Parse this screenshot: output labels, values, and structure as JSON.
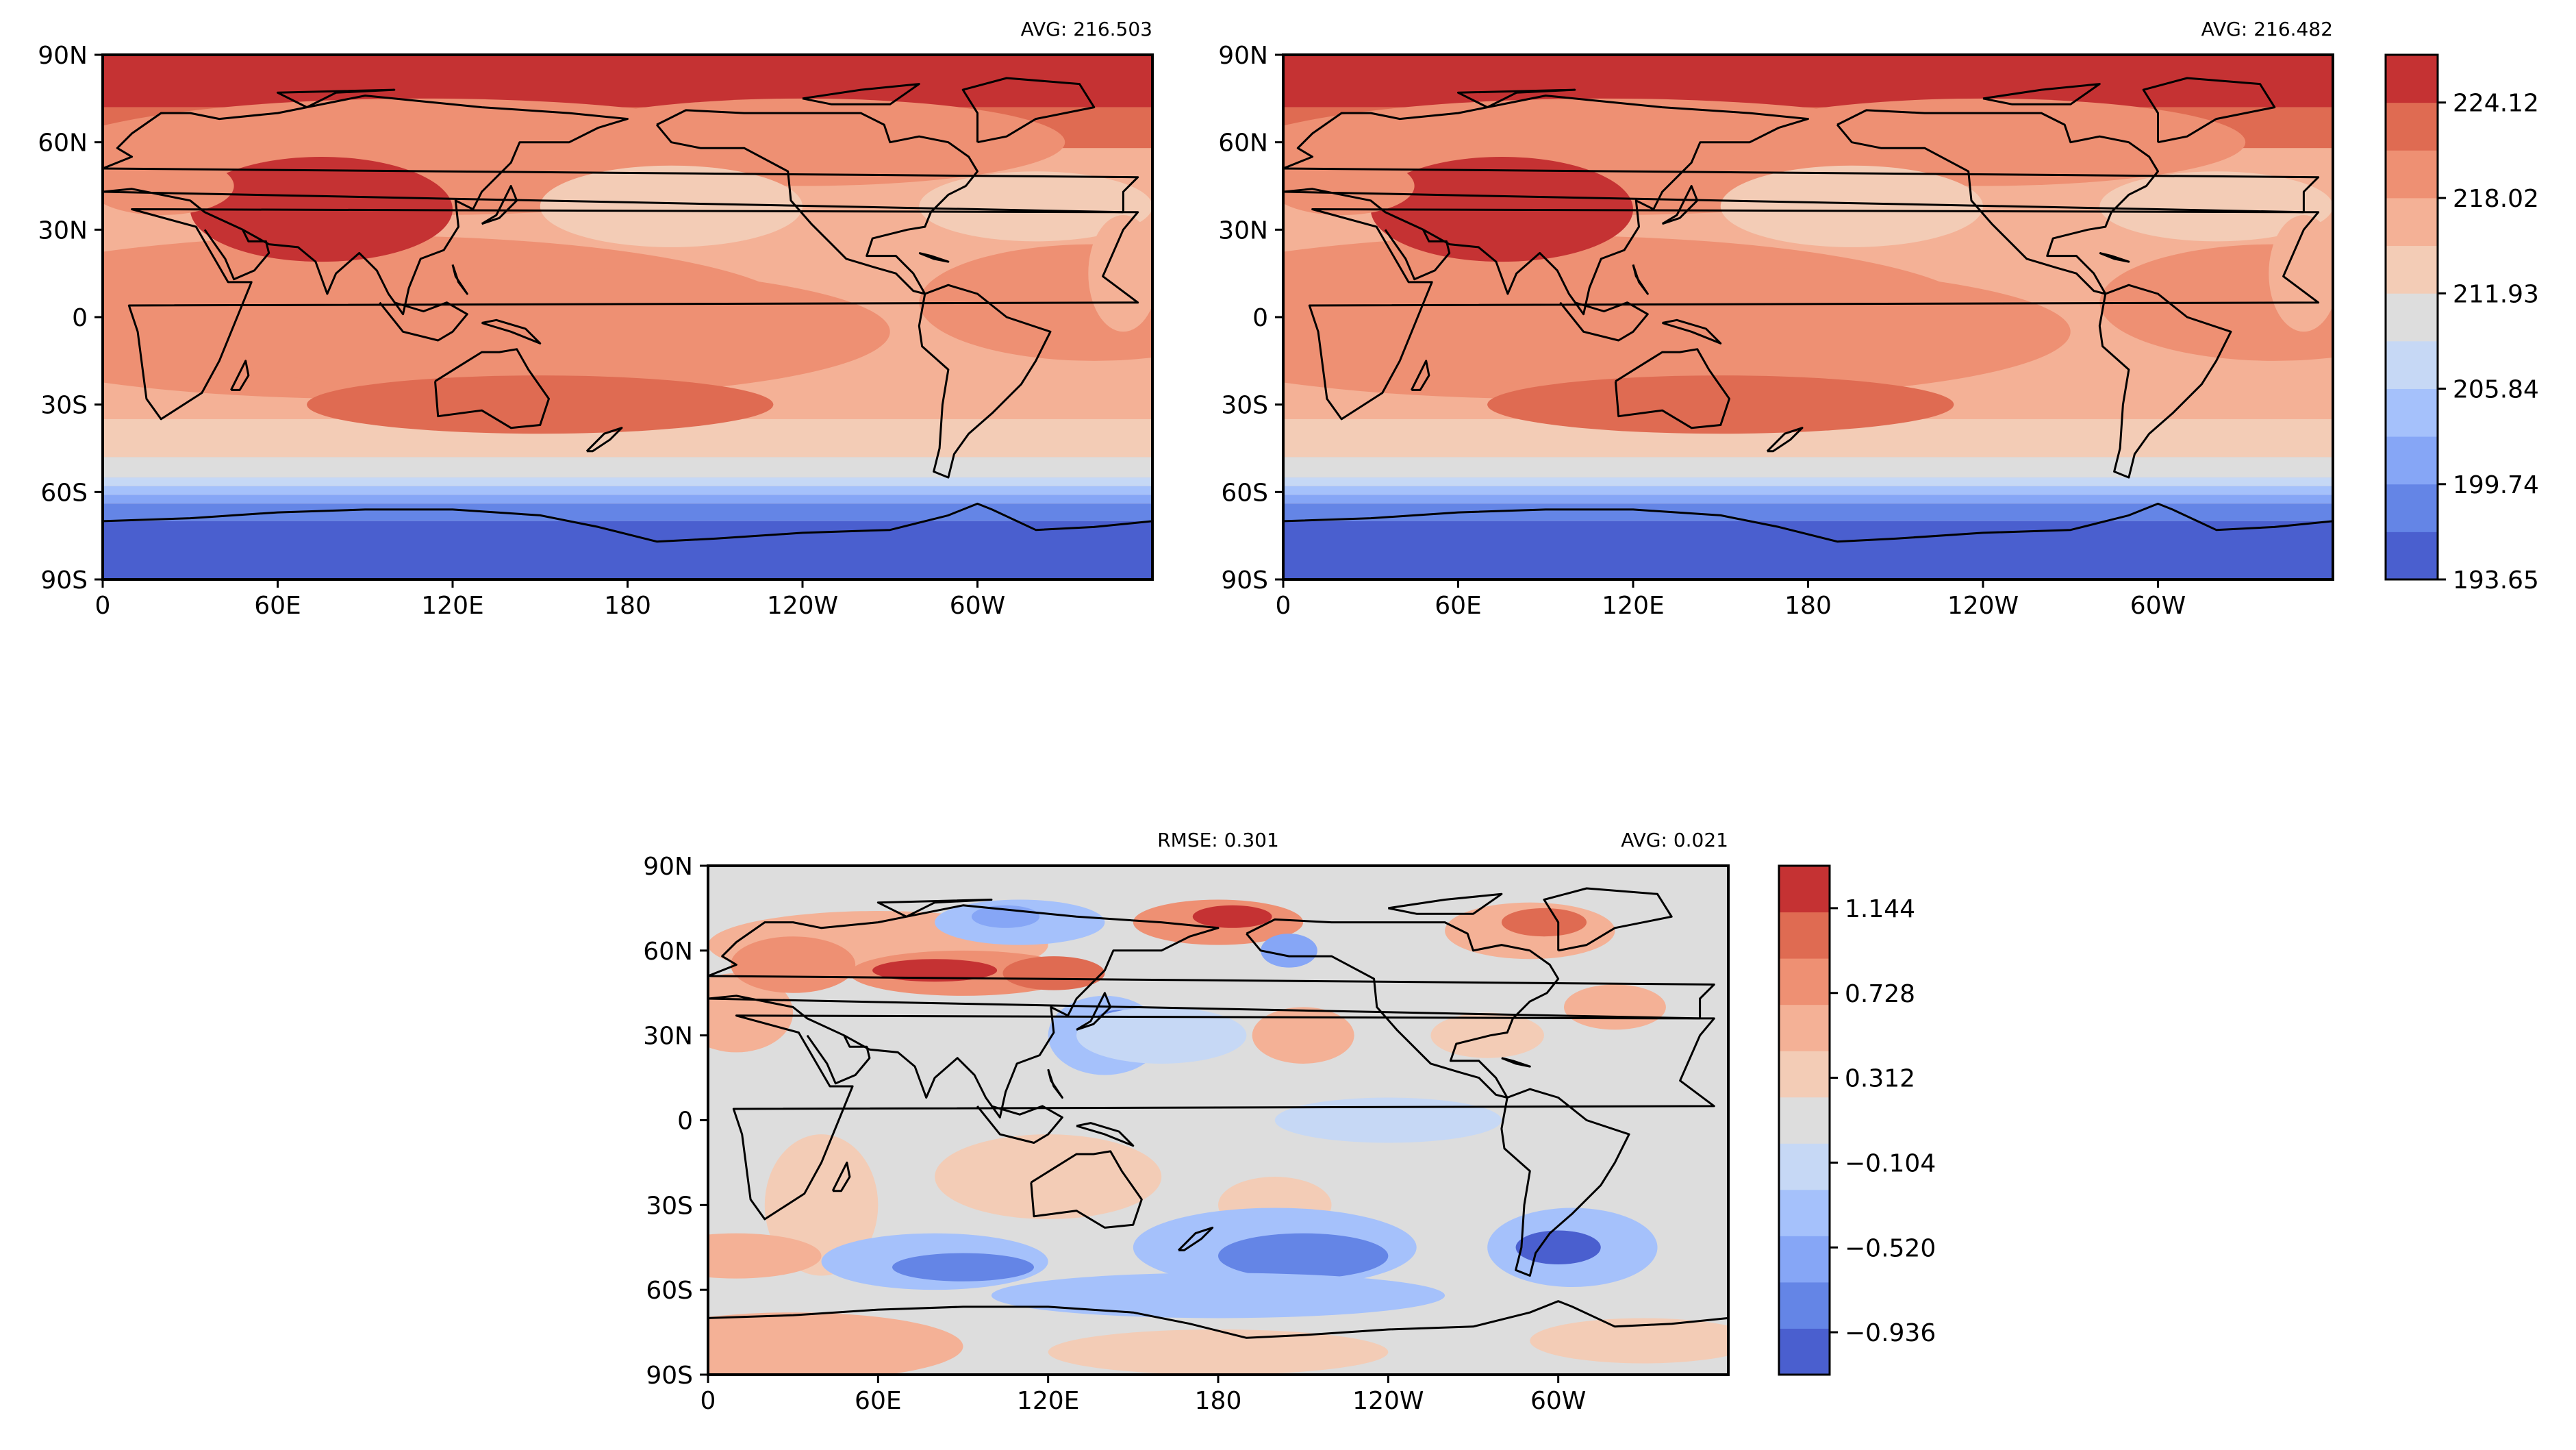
{
  "colors": {
    "diverging_coolwarm": [
      "#4a5fcf",
      "#6485e6",
      "#86a6f6",
      "#a5c1fb",
      "#c6d8f5",
      "#dddddd",
      "#f3ccb6",
      "#f4b196",
      "#ee9073",
      "#df6b52",
      "#c53233"
    ]
  },
  "chart_data": [
    {
      "type": "heatmap",
      "annotations": {
        "left": "",
        "center": "",
        "right": "AVG: 216.503"
      },
      "x_ticks": [
        "0",
        "60E",
        "120E",
        "180",
        "120W",
        "60W"
      ],
      "y_ticks": [
        "90N",
        "60N",
        "30N",
        "0",
        "30S",
        "60S",
        "90S"
      ],
      "xlim": [
        0,
        360
      ],
      "ylim": [
        -90,
        90
      ],
      "field": "model",
      "colorbar": null
    },
    {
      "type": "heatmap",
      "annotations": {
        "left": "",
        "center": "",
        "right": "AVG: 216.482"
      },
      "x_ticks": [
        "0",
        "60E",
        "120E",
        "180",
        "120W",
        "60W"
      ],
      "y_ticks": [
        "90N",
        "60N",
        "30N",
        "0",
        "30S",
        "60S",
        "90S"
      ],
      "xlim": [
        0,
        360
      ],
      "ylim": [
        -90,
        90
      ],
      "field": "observation",
      "colorbar": {
        "tick_labels": [
          "224.12",
          "218.02",
          "211.93",
          "205.84",
          "199.74",
          "193.65"
        ],
        "tick_values": [
          224.12,
          218.02,
          211.93,
          205.84,
          199.74,
          193.65
        ],
        "range": [
          193.65,
          227.17
        ]
      }
    },
    {
      "type": "heatmap",
      "annotations": {
        "left": "",
        "center": "RMSE: 0.301",
        "right": "AVG: 0.021"
      },
      "x_ticks": [
        "0",
        "60E",
        "120E",
        "180",
        "120W",
        "60W"
      ],
      "y_ticks": [
        "90N",
        "60N",
        "30N",
        "0",
        "30S",
        "60S",
        "90S"
      ],
      "xlim": [
        0,
        360
      ],
      "ylim": [
        -90,
        90
      ],
      "field": "difference",
      "colorbar": {
        "tick_labels": [
          "1.144",
          "0.728",
          "0.312",
          "−0.104",
          "−0.520",
          "−0.936"
        ],
        "tick_values": [
          1.144,
          0.728,
          0.312,
          -0.104,
          -0.52,
          -0.936
        ],
        "range": [
          -1.144,
          1.352
        ]
      }
    }
  ]
}
